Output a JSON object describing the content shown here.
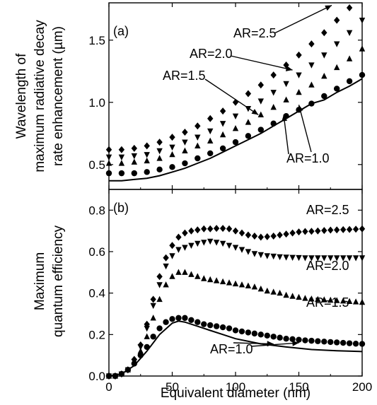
{
  "chart_data": [
    {
      "type": "scatter",
      "panel_label": "(a)",
      "ylabel_lines": [
        "Wavelength of",
        "maximum radiative decay",
        "rate enhancement (µm)"
      ],
      "xlim": [
        0,
        200
      ],
      "ylim": [
        0.3,
        1.8
      ],
      "yticks": [
        0.5,
        1.0,
        1.5
      ],
      "ytick_labels": [
        "0.5",
        "1.0",
        "1.5"
      ],
      "xticks": [
        0,
        50,
        100,
        150,
        200
      ],
      "series": [
        {
          "name": "AR=1.0",
          "marker": "line",
          "x": [
            0,
            10,
            20,
            30,
            40,
            50,
            60,
            70,
            80,
            90,
            100,
            110,
            120,
            130,
            140,
            150,
            160,
            170,
            180,
            190,
            200
          ],
          "y": [
            0.37,
            0.37,
            0.38,
            0.39,
            0.41,
            0.44,
            0.47,
            0.51,
            0.55,
            0.6,
            0.65,
            0.7,
            0.75,
            0.81,
            0.87,
            0.93,
            0.99,
            1.02,
            1.08,
            1.13,
            1.19
          ]
        },
        {
          "name": "",
          "marker": "circle",
          "x": [
            0,
            10,
            20,
            30,
            40,
            50,
            60,
            70,
            80,
            90,
            100,
            110,
            120,
            130,
            140,
            150,
            160,
            170,
            180,
            190,
            200
          ],
          "y": [
            0.43,
            0.43,
            0.43,
            0.44,
            0.46,
            0.48,
            0.51,
            0.55,
            0.59,
            0.63,
            0.68,
            0.73,
            0.78,
            0.83,
            0.89,
            0.94,
            0.99,
            1.05,
            1.11,
            1.17,
            1.22
          ]
        },
        {
          "name": "AR=1.5",
          "marker": "triangle-up",
          "x": [
            0,
            10,
            20,
            30,
            40,
            50,
            60,
            70,
            80,
            90,
            100,
            110,
            120,
            130,
            140,
            150,
            160,
            170,
            180,
            190,
            200
          ],
          "y": [
            0.51,
            0.51,
            0.52,
            0.53,
            0.55,
            0.58,
            0.61,
            0.65,
            0.69,
            0.74,
            0.79,
            0.84,
            0.9,
            0.96,
            1.02,
            1.08,
            1.14,
            1.21,
            1.28,
            1.35,
            1.43
          ]
        },
        {
          "name": "AR=2.0",
          "marker": "triangle-down",
          "x": [
            0,
            10,
            20,
            30,
            40,
            50,
            60,
            70,
            80,
            90,
            100,
            110,
            120,
            130,
            140,
            150,
            160,
            170,
            180,
            190,
            200
          ],
          "y": [
            0.56,
            0.56,
            0.57,
            0.58,
            0.61,
            0.64,
            0.68,
            0.72,
            0.77,
            0.83,
            0.89,
            0.95,
            1.01,
            1.08,
            1.15,
            1.22,
            1.3,
            1.38,
            1.47,
            1.56,
            1.66
          ]
        },
        {
          "name": "AR=2.5",
          "marker": "diamond",
          "x": [
            0,
            10,
            20,
            30,
            40,
            50,
            60,
            70,
            80,
            90,
            100,
            110,
            120,
            130,
            140,
            150,
            160,
            170,
            180,
            190,
            200
          ],
          "y": [
            0.62,
            0.62,
            0.63,
            0.65,
            0.68,
            0.72,
            0.76,
            0.81,
            0.87,
            0.93,
            1.0,
            1.07,
            1.14,
            1.22,
            1.3,
            1.38,
            1.47,
            1.56,
            1.66,
            1.76,
            1.86
          ]
        }
      ],
      "annotations": [
        {
          "text": "AR=2.5",
          "arrow_to": [
            176,
            1.78
          ]
        },
        {
          "text": "AR=2.0",
          "arrow_to": [
            145,
            1.26
          ]
        },
        {
          "text": "AR=1.5",
          "arrow_to": [
            118,
            0.9
          ]
        },
        {
          "text": "AR=1.0",
          "arrow_to": [
            [
              138,
              0.9
            ],
            [
              150,
              0.98
            ]
          ]
        }
      ]
    },
    {
      "type": "scatter",
      "panel_label": "(b)",
      "ylabel_lines": [
        "Maximum",
        "quantum efficiency"
      ],
      "xlabel": "Equivalent diameter (nm)",
      "xlim": [
        0,
        200
      ],
      "ylim": [
        0.0,
        0.9
      ],
      "yticks": [
        0.0,
        0.2,
        0.4,
        0.6,
        0.8
      ],
      "ytick_labels": [
        "0.0",
        "0.2",
        "0.4",
        "0.6",
        "0.8"
      ],
      "xticks": [
        0,
        50,
        100,
        150,
        200
      ],
      "xtick_labels": [
        "0",
        "50",
        "100",
        "150",
        "200"
      ],
      "series": [
        {
          "name": "AR=1.0",
          "marker": "line",
          "x": [
            0,
            10,
            20,
            30,
            40,
            50,
            55,
            60,
            70,
            80,
            90,
            100,
            120,
            140,
            160,
            180,
            200
          ],
          "y": [
            0.0,
            0.01,
            0.05,
            0.12,
            0.2,
            0.255,
            0.265,
            0.26,
            0.24,
            0.22,
            0.2,
            0.18,
            0.155,
            0.14,
            0.128,
            0.122,
            0.118
          ]
        },
        {
          "name": "",
          "marker": "circle",
          "x": [
            0,
            5,
            10,
            15,
            20,
            25,
            30,
            35,
            40,
            45,
            50,
            55,
            60,
            65,
            70,
            75,
            80,
            85,
            90,
            95,
            100,
            105,
            110,
            115,
            120,
            125,
            130,
            135,
            140,
            145,
            150,
            155,
            160,
            165,
            170,
            175,
            180,
            185,
            190,
            195,
            200
          ],
          "y": [
            0.0,
            0.0,
            0.01,
            0.03,
            0.06,
            0.1,
            0.14,
            0.19,
            0.23,
            0.26,
            0.275,
            0.28,
            0.28,
            0.27,
            0.26,
            0.25,
            0.245,
            0.24,
            0.235,
            0.23,
            0.22,
            0.215,
            0.21,
            0.205,
            0.2,
            0.195,
            0.19,
            0.185,
            0.18,
            0.178,
            0.175,
            0.172,
            0.17,
            0.168,
            0.166,
            0.164,
            0.162,
            0.16,
            0.158,
            0.156,
            0.155
          ]
        },
        {
          "name": "AR=1.5",
          "marker": "triangle-up",
          "x": [
            0,
            5,
            10,
            15,
            20,
            25,
            30,
            35,
            40,
            45,
            50,
            55,
            60,
            65,
            70,
            75,
            80,
            85,
            90,
            95,
            100,
            105,
            110,
            115,
            120,
            125,
            130,
            135,
            140,
            145,
            150,
            155,
            160,
            165,
            170,
            175,
            180,
            185,
            190,
            195,
            200
          ],
          "y": [
            0.0,
            0.0,
            0.01,
            0.03,
            0.07,
            0.12,
            0.19,
            0.28,
            0.37,
            0.44,
            0.48,
            0.5,
            0.5,
            0.49,
            0.48,
            0.47,
            0.465,
            0.46,
            0.455,
            0.45,
            0.445,
            0.44,
            0.435,
            0.43,
            0.42,
            0.41,
            0.405,
            0.4,
            0.39,
            0.385,
            0.38,
            0.375,
            0.372,
            0.37,
            0.368,
            0.366,
            0.364,
            0.362,
            0.36,
            0.358,
            0.356
          ]
        },
        {
          "name": "AR=2.0",
          "marker": "triangle-down",
          "x": [
            0,
            5,
            10,
            15,
            20,
            25,
            30,
            35,
            40,
            45,
            50,
            55,
            60,
            65,
            70,
            75,
            80,
            85,
            90,
            95,
            100,
            105,
            110,
            115,
            120,
            125,
            130,
            135,
            140,
            145,
            150,
            155,
            160,
            165,
            170,
            175,
            180,
            185,
            190,
            195,
            200
          ],
          "y": [
            0.0,
            0.0,
            0.01,
            0.03,
            0.07,
            0.14,
            0.23,
            0.34,
            0.44,
            0.53,
            0.58,
            0.61,
            0.62,
            0.63,
            0.64,
            0.645,
            0.65,
            0.645,
            0.64,
            0.63,
            0.62,
            0.61,
            0.6,
            0.59,
            0.585,
            0.58,
            0.578,
            0.575,
            0.573,
            0.572,
            0.571,
            0.57,
            0.57,
            0.57,
            0.57,
            0.57,
            0.57,
            0.57,
            0.57,
            0.57,
            0.57
          ]
        },
        {
          "name": "AR=2.5",
          "marker": "diamond",
          "x": [
            0,
            5,
            10,
            15,
            20,
            25,
            30,
            35,
            40,
            45,
            50,
            55,
            60,
            65,
            70,
            75,
            80,
            85,
            90,
            95,
            100,
            105,
            110,
            115,
            120,
            125,
            130,
            135,
            140,
            145,
            150,
            155,
            160,
            165,
            170,
            175,
            180,
            185,
            190,
            195,
            200
          ],
          "y": [
            0.0,
            0.0,
            0.01,
            0.03,
            0.08,
            0.15,
            0.25,
            0.37,
            0.48,
            0.57,
            0.63,
            0.67,
            0.69,
            0.7,
            0.705,
            0.71,
            0.71,
            0.712,
            0.712,
            0.71,
            0.7,
            0.69,
            0.68,
            0.675,
            0.67,
            0.672,
            0.675,
            0.68,
            0.685,
            0.69,
            0.695,
            0.697,
            0.698,
            0.7,
            0.702,
            0.704,
            0.705,
            0.706,
            0.707,
            0.708,
            0.71
          ]
        }
      ],
      "annotations": [
        {
          "text": "AR=2.5"
        },
        {
          "text": "AR=2.0"
        },
        {
          "text": "AR=1.5"
        },
        {
          "text": "AR=1.0",
          "arrow_to": [
            [
              130,
              0.155
            ],
            [
              150,
              0.16
            ]
          ]
        }
      ]
    }
  ]
}
